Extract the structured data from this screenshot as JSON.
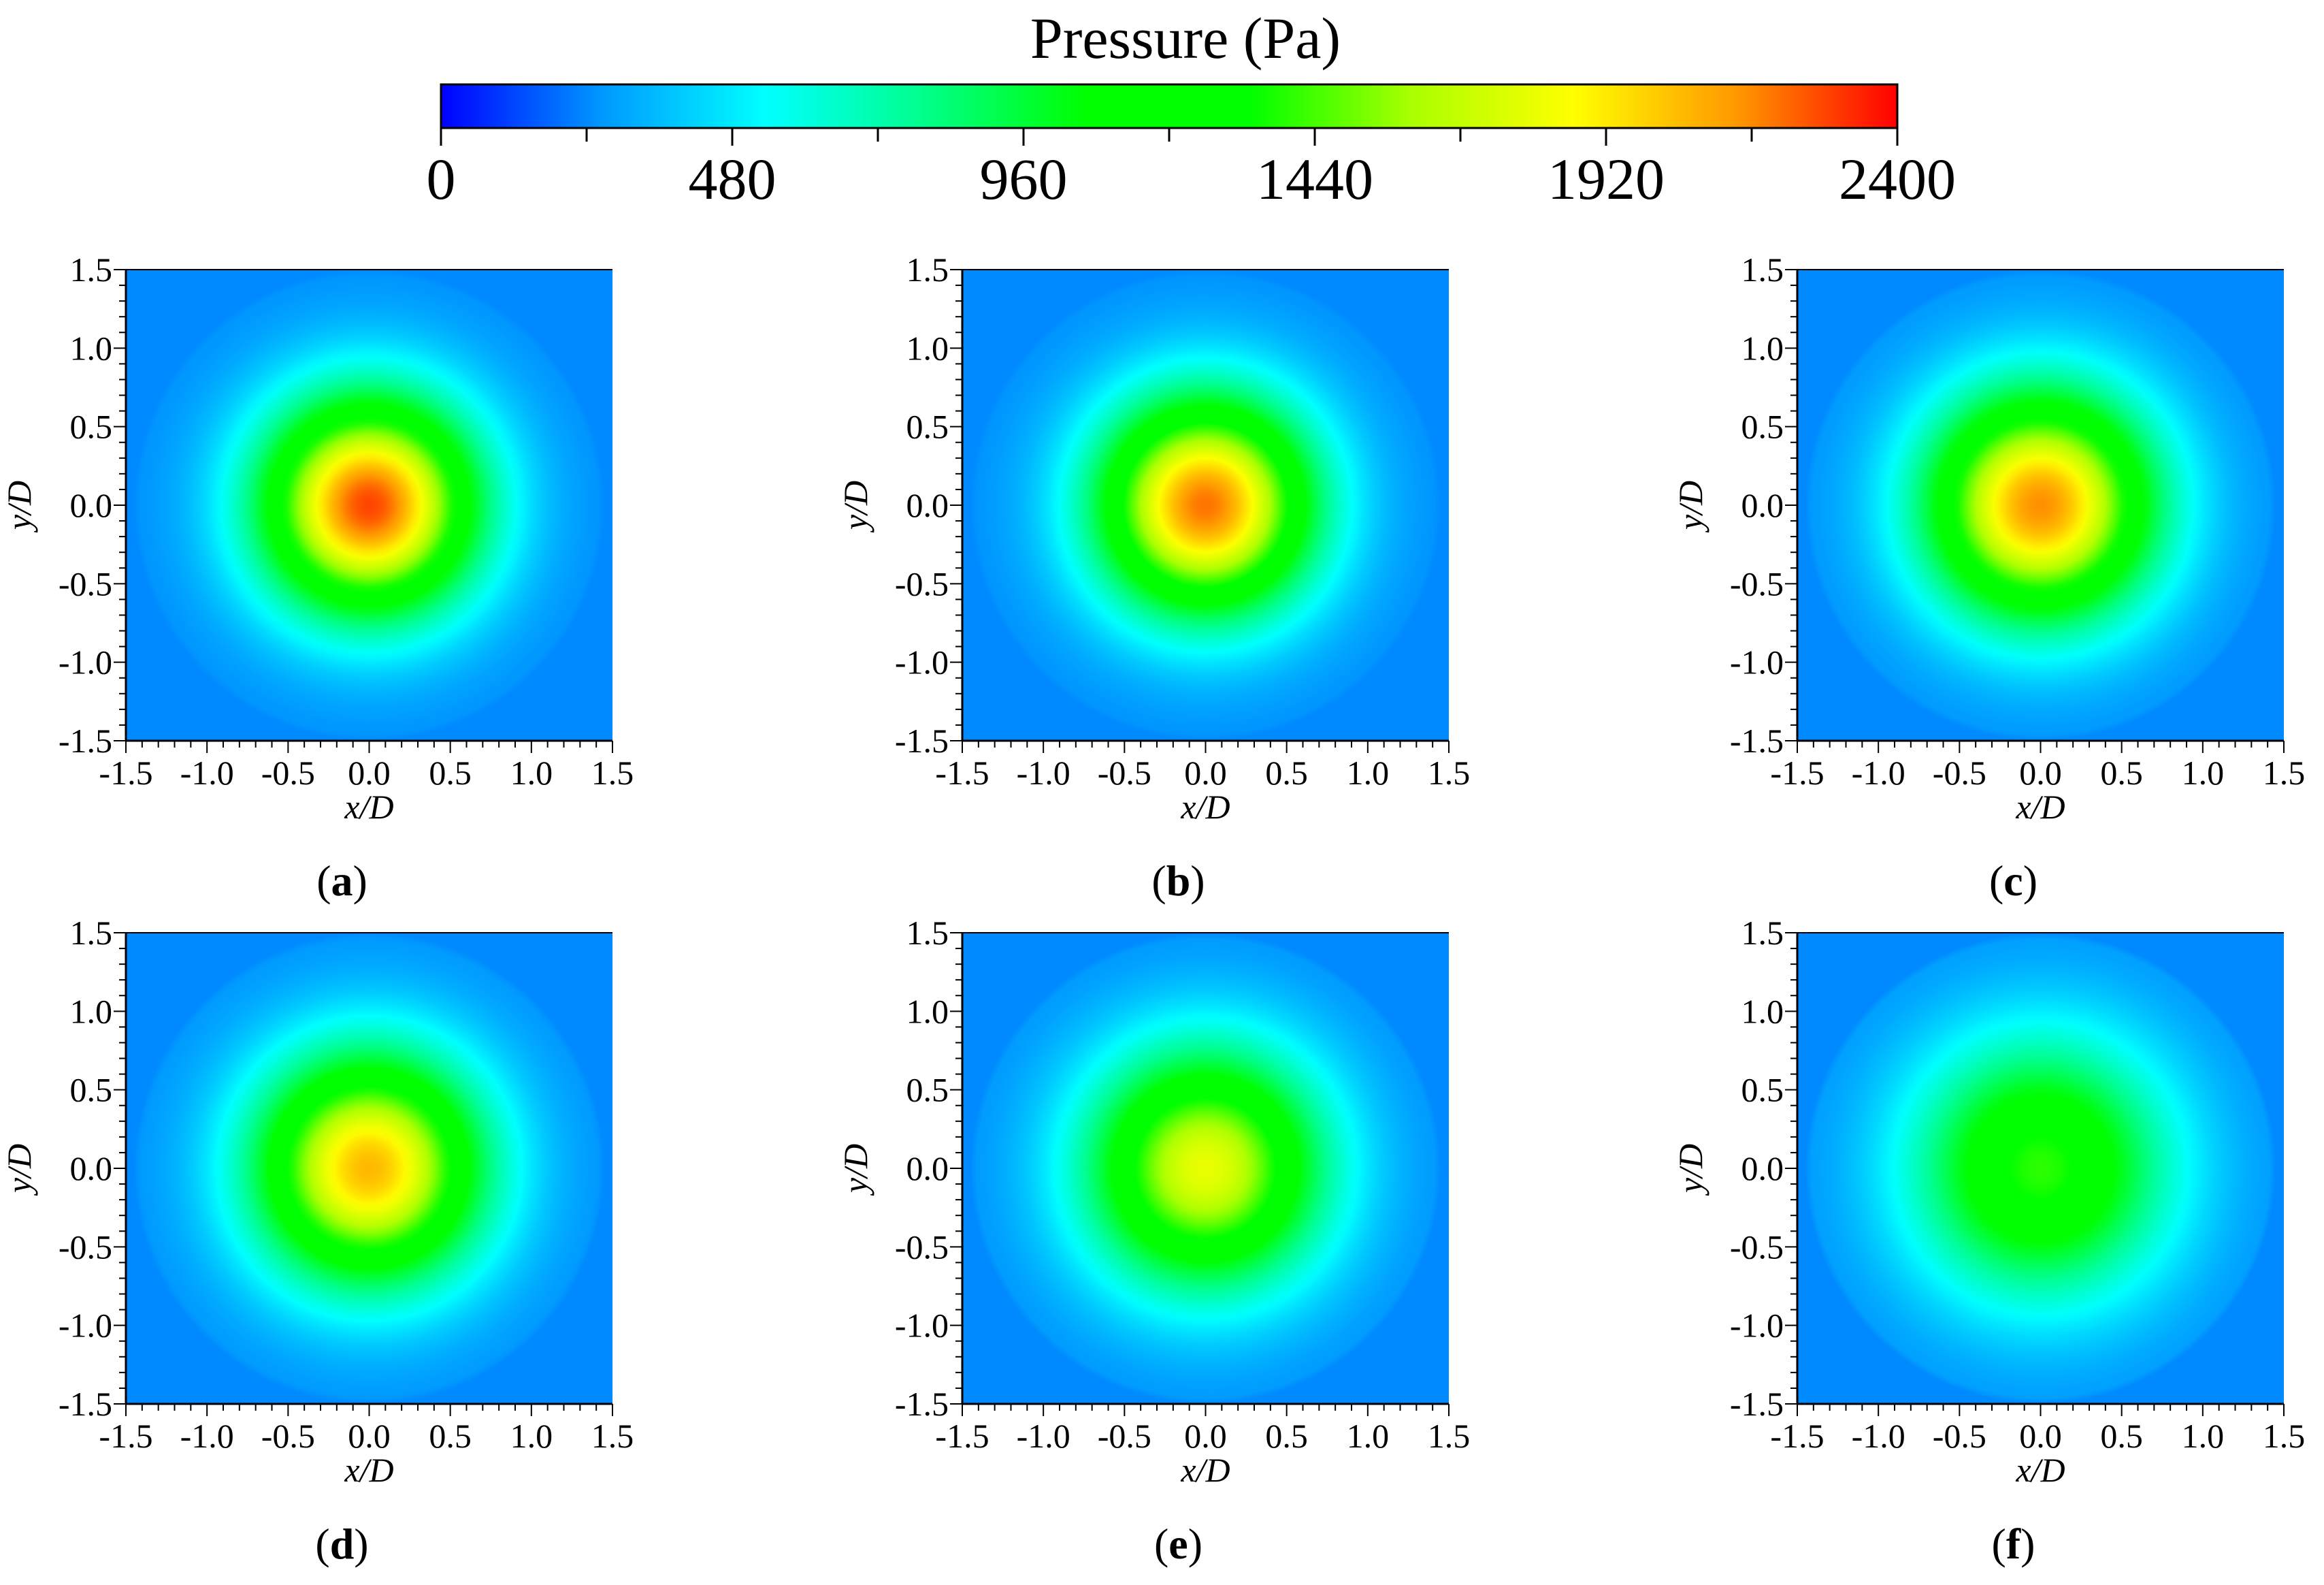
{
  "colorbar": {
    "title": "Pressure (Pa)",
    "min": 0,
    "max": 2400,
    "tick_values": [
      0,
      480,
      960,
      1440,
      1920,
      2400
    ],
    "tick_labels": [
      "0",
      "480",
      "960",
      "1440",
      "1920",
      "2400"
    ],
    "minor_tick_values": [
      240,
      720,
      1200,
      1680,
      2160
    ],
    "colormap": [
      "#0000ff",
      "#0099ff",
      "#00ffff",
      "#00ff88",
      "#00ff00",
      "#00ff00",
      "#aaff00",
      "#ffff00",
      "#ff9900",
      "#ff0000"
    ]
  },
  "chart_data": [
    {
      "type": "heatmap",
      "label": "a",
      "title": "",
      "xlabel": "x/D",
      "ylabel": "y/D",
      "xlim": [
        -1.5,
        1.5
      ],
      "ylim": [
        -1.5,
        1.5
      ],
      "xticks": [
        "-1.5",
        "-1.0",
        "-0.5",
        "0.0",
        "0.5",
        "1.0",
        "1.5"
      ],
      "yticks": [
        "-1.5",
        "-1.0",
        "-0.5",
        "0.0",
        "0.5",
        "1.0",
        "1.5"
      ],
      "field": {
        "shape": "radial",
        "center": [
          0,
          0
        ],
        "peak_pa": 2280,
        "background_pa": 240,
        "radius_at_half_peak": 0.55
      }
    },
    {
      "type": "heatmap",
      "label": "b",
      "title": "",
      "xlabel": "x/D",
      "ylabel": "y/D",
      "xlim": [
        -1.5,
        1.5
      ],
      "ylim": [
        -1.5,
        1.5
      ],
      "xticks": [
        "-1.5",
        "-1.0",
        "-0.5",
        "0.0",
        "0.5",
        "1.0",
        "1.5"
      ],
      "yticks": [
        "-1.5",
        "-1.0",
        "-0.5",
        "0.0",
        "0.5",
        "1.0",
        "1.5"
      ],
      "field": {
        "shape": "radial",
        "center": [
          0,
          0
        ],
        "peak_pa": 2200,
        "background_pa": 240,
        "radius_at_half_peak": 0.55
      }
    },
    {
      "type": "heatmap",
      "label": "c",
      "title": "",
      "xlabel": "x/D",
      "ylabel": "y/D",
      "xlim": [
        -1.5,
        1.5
      ],
      "ylim": [
        -1.5,
        1.5
      ],
      "xticks": [
        "-1.5",
        "-1.0",
        "-0.5",
        "0.0",
        "0.5",
        "1.0",
        "1.5"
      ],
      "yticks": [
        "-1.5",
        "-1.0",
        "-0.5",
        "0.0",
        "0.5",
        "1.0",
        "1.5"
      ],
      "field": {
        "shape": "radial",
        "center": [
          0,
          0
        ],
        "peak_pa": 2150,
        "background_pa": 240,
        "radius_at_half_peak": 0.58
      }
    },
    {
      "type": "heatmap",
      "label": "d",
      "title": "",
      "xlabel": "x/D",
      "ylabel": "y/D",
      "xlim": [
        -1.5,
        1.5
      ],
      "ylim": [
        -1.5,
        1.5
      ],
      "xticks": [
        "-1.5",
        "-1.0",
        "-0.5",
        "0.0",
        "0.5",
        "1.0",
        "1.5"
      ],
      "yticks": [
        "-1.5",
        "-1.0",
        "-0.5",
        "0.0",
        "0.5",
        "1.0",
        "1.5"
      ],
      "field": {
        "shape": "radial",
        "center": [
          0,
          0
        ],
        "peak_pa": 2050,
        "background_pa": 240,
        "radius_at_half_peak": 0.58
      }
    },
    {
      "type": "heatmap",
      "label": "e",
      "title": "",
      "xlabel": "x/D",
      "ylabel": "y/D",
      "xlim": [
        -1.5,
        1.5
      ],
      "ylim": [
        -1.5,
        1.5
      ],
      "xticks": [
        "-1.5",
        "-1.0",
        "-0.5",
        "0.0",
        "0.5",
        "1.0",
        "1.5"
      ],
      "yticks": [
        "-1.5",
        "-1.0",
        "-0.5",
        "0.0",
        "0.5",
        "1.0",
        "1.5"
      ],
      "field": {
        "shape": "radial",
        "center": [
          0,
          0
        ],
        "peak_pa": 1800,
        "background_pa": 240,
        "radius_at_half_peak": 0.6
      }
    },
    {
      "type": "heatmap",
      "label": "f",
      "title": "",
      "xlabel": "x/D",
      "ylabel": "y/D",
      "xlim": [
        -1.5,
        1.5
      ],
      "ylim": [
        -1.5,
        1.5
      ],
      "xticks": [
        "-1.5",
        "-1.0",
        "-0.5",
        "0.0",
        "0.5",
        "1.0",
        "1.5"
      ],
      "yticks": [
        "-1.5",
        "-1.0",
        "-0.5",
        "0.0",
        "0.5",
        "1.0",
        "1.5"
      ],
      "field": {
        "shape": "radial",
        "center": [
          0,
          0
        ],
        "peak_pa": 1400,
        "background_pa": 240,
        "radius_at_half_peak": 0.65
      }
    }
  ]
}
